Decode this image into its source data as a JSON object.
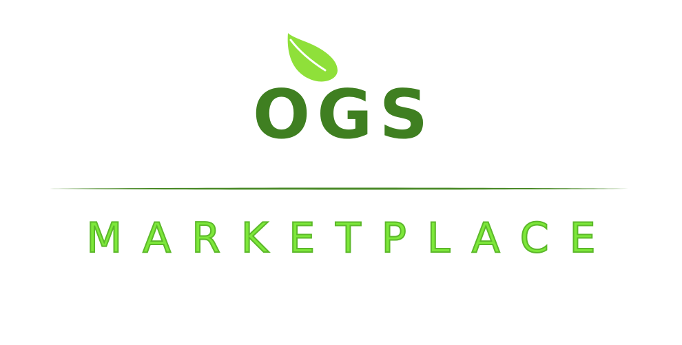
{
  "logo": {
    "brand": "OGS",
    "tagline": "MARKETPLACE",
    "icon": "leaf-icon",
    "colors": {
      "brand": "#3f7f21",
      "tagline": "#7de83a",
      "leaf": "#8fe03a",
      "divider": "#4a8a28"
    }
  }
}
